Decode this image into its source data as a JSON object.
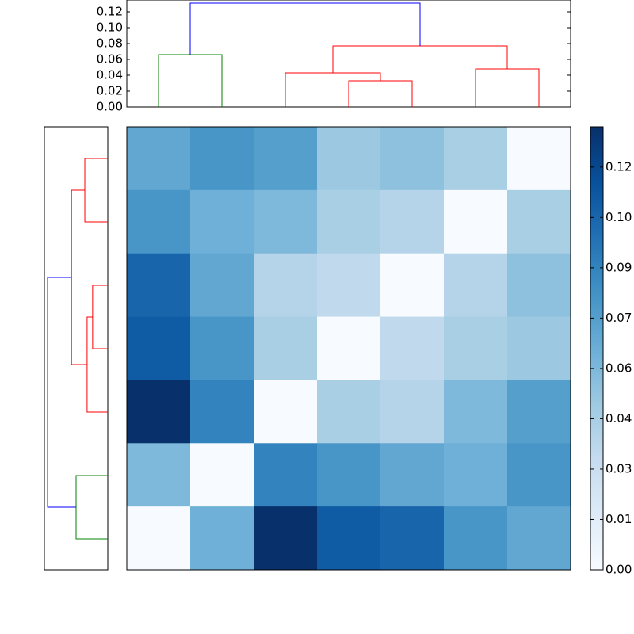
{
  "chart_data": [
    {
      "type": "dendrogram",
      "orientation": "top",
      "xlim": [
        0,
        70
      ],
      "ylim": [
        0,
        0.135
      ],
      "yticks": [
        {
          "value": 0,
          "label": "0.00"
        },
        {
          "value": 0.02,
          "label": "0.02"
        },
        {
          "value": 0.04,
          "label": "0.04"
        },
        {
          "value": 0.06,
          "label": "0.06"
        },
        {
          "value": 0.08,
          "label": "0.08"
        },
        {
          "value": 0.1,
          "label": "0.10"
        },
        {
          "value": 0.12,
          "label": "0.12"
        }
      ],
      "links": [
        {
          "icoord": [
            5,
            5,
            15,
            15
          ],
          "dcoord": [
            0,
            0.066,
            0.066,
            0
          ],
          "color": "#008000"
        },
        {
          "icoord": [
            35,
            35,
            45,
            45
          ],
          "dcoord": [
            0,
            0.033,
            0.033,
            0
          ],
          "color": "#ff0000"
        },
        {
          "icoord": [
            25,
            25,
            40,
            40
          ],
          "dcoord": [
            0,
            0.043,
            0.043,
            0.033
          ],
          "color": "#ff0000"
        },
        {
          "icoord": [
            55,
            55,
            65,
            65
          ],
          "dcoord": [
            0,
            0.048,
            0.048,
            0
          ],
          "color": "#ff0000"
        },
        {
          "icoord": [
            32.5,
            32.5,
            60,
            60
          ],
          "dcoord": [
            0.043,
            0.077,
            0.077,
            0.048
          ],
          "color": "#ff0000"
        },
        {
          "icoord": [
            10,
            10,
            46.25,
            46.25
          ],
          "dcoord": [
            0.066,
            0.131,
            0.131,
            0.077
          ],
          "color": "#0000ff"
        }
      ]
    },
    {
      "type": "dendrogram",
      "orientation": "left",
      "ylim": [
        0,
        70
      ],
      "xlim": [
        0,
        0.138
      ],
      "links": [
        {
          "icoord": [
            5,
            5,
            15,
            15
          ],
          "dcoord": [
            0,
            0.05,
            0.05,
            0
          ],
          "color": "#ff0000"
        },
        {
          "icoord": [
            25,
            25,
            35,
            35
          ],
          "dcoord": [
            0,
            0.033,
            0.033,
            0
          ],
          "color": "#ff0000"
        },
        {
          "icoord": [
            30,
            30,
            45,
            45
          ],
          "dcoord": [
            0.033,
            0.045,
            0.045,
            0
          ],
          "color": "#ff0000"
        },
        {
          "icoord": [
            10,
            10,
            37.5,
            37.5
          ],
          "dcoord": [
            0.05,
            0.079,
            0.079,
            0.045
          ],
          "color": "#ff0000"
        },
        {
          "icoord": [
            55,
            55,
            65,
            65
          ],
          "dcoord": [
            0,
            0.069,
            0.069,
            0
          ],
          "color": "#008000"
        },
        {
          "icoord": [
            23.75,
            23.75,
            60,
            60
          ],
          "dcoord": [
            0.079,
            0.131,
            0.131,
            0.069
          ],
          "color": "#0000ff"
        }
      ]
    },
    {
      "type": "heatmap",
      "colormap": "Blues",
      "clim": [
        0,
        0.132
      ],
      "values": [
        [
          0.07,
          0.08,
          0.075,
          0.05,
          0.055,
          0.045,
          0.0
        ],
        [
          0.08,
          0.065,
          0.06,
          0.045,
          0.04,
          0.0,
          0.045
        ],
        [
          0.105,
          0.07,
          0.04,
          0.035,
          0.0,
          0.04,
          0.055
        ],
        [
          0.11,
          0.08,
          0.045,
          0.0,
          0.035,
          0.045,
          0.05
        ],
        [
          0.132,
          0.09,
          0.0,
          0.045,
          0.04,
          0.06,
          0.075
        ],
        [
          0.06,
          0.0,
          0.09,
          0.08,
          0.07,
          0.065,
          0.08
        ],
        [
          0.0,
          0.065,
          0.132,
          0.11,
          0.105,
          0.08,
          0.07
        ]
      ],
      "cticks": [
        {
          "value": 0,
          "label": "0.00"
        },
        {
          "value": 0.015,
          "label": "0.01"
        },
        {
          "value": 0.03,
          "label": "0.03"
        },
        {
          "value": 0.045,
          "label": "0.04"
        },
        {
          "value": 0.06,
          "label": "0.06"
        },
        {
          "value": 0.075,
          "label": "0.07"
        },
        {
          "value": 0.09,
          "label": "0.09"
        },
        {
          "value": 0.105,
          "label": "0.10"
        },
        {
          "value": 0.12,
          "label": "0.12"
        }
      ]
    }
  ]
}
